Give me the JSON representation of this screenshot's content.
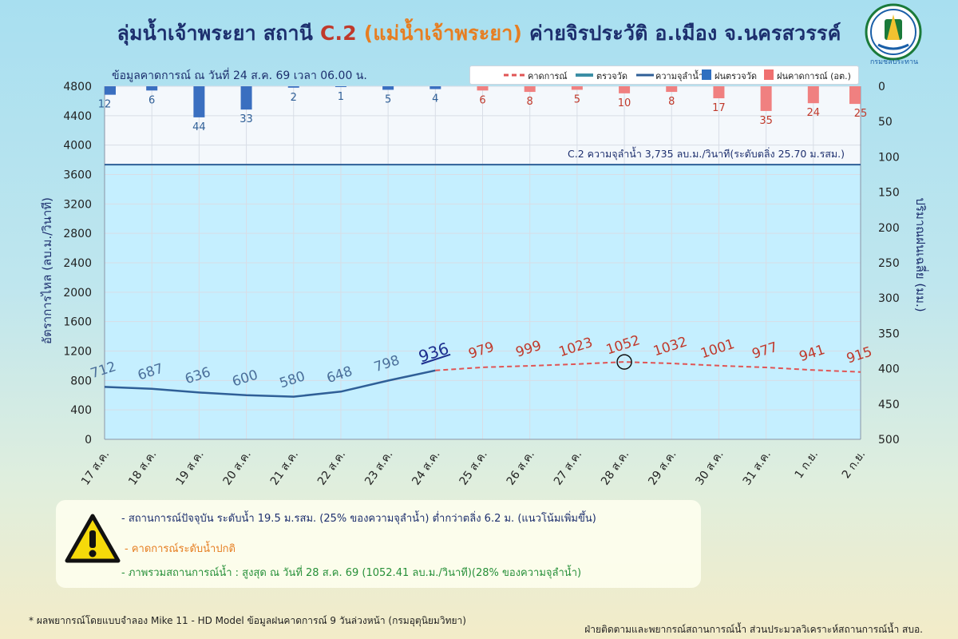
{
  "header": {
    "title_prefix": "ลุ่มน้ำเจ้าพระยา สถานี ",
    "title_station": "C.2",
    "title_river": " (แม่น้ำเจ้าพระยา)",
    "title_suffix": " ค่ายจิรประวัติ อ.เมือง จ.นครสวรรค์",
    "subtitle": "ข้อมูลคาดการณ์ ณ วันที่ 24 ส.ค. 69 เวลา 06.00 น.",
    "logo_text": "กรมชลประทาน"
  },
  "legend": {
    "forecast": "คาดการณ์",
    "observed": "ตรวจวัด",
    "capacity": "ความจุลำน้ำ",
    "rain_observed": "ฝนตรวจวัด",
    "rain_forecast": "ฝนคาดการณ์ (อต.)"
  },
  "colors": {
    "observed": "#2f5f97",
    "forecast": "#e05555",
    "capacity": "#2f5f97",
    "rain_observed": "#3a6fc0",
    "rain_forecast": "#f08080",
    "plot_bg": "#c5efff",
    "rain_panel_bg": "#f7f8fc"
  },
  "chart_data": {
    "type": "line",
    "x": [
      "17 ส.ค.",
      "18 ส.ค.",
      "19 ส.ค.",
      "20 ส.ค.",
      "21 ส.ค.",
      "22 ส.ค.",
      "23 ส.ค.",
      "24 ส.ค.",
      "25 ส.ค.",
      "26 ส.ค.",
      "27 ส.ค.",
      "28 ส.ค.",
      "29 ส.ค.",
      "30 ส.ค.",
      "31 ส.ค.",
      "1 ก.ย.",
      "2 ก.ย."
    ],
    "ylabel": "อัตราการไหล (ลบ.ม./วินาที)",
    "ylim": [
      0,
      4800
    ],
    "yticks": [
      0,
      400,
      800,
      1200,
      1600,
      2000,
      2400,
      2800,
      3200,
      3600,
      4000,
      4400,
      4800
    ],
    "y2label": "ปริมาณฝนเฉลี่ย (มม.)",
    "y2lim": [
      0,
      500
    ],
    "y2ticks": [
      0,
      50,
      100,
      150,
      200,
      250,
      300,
      350,
      400,
      450,
      500
    ],
    "flow_values": [
      712,
      687,
      636,
      600,
      580,
      648,
      798,
      936,
      979,
      999,
      1023,
      1052,
      1032,
      1001,
      977,
      941,
      915
    ],
    "observed_count": 8,
    "rain_values": [
      12,
      6,
      44,
      33,
      2,
      1,
      5,
      4,
      6,
      8,
      5,
      10,
      8,
      17,
      35,
      24,
      25
    ],
    "capacity_value": 3735,
    "capacity_label": "C.2 ความจุลำน้ำ 3,735 ลบ.ม./วินาที(ระดับตลิ่ง 25.70 ม.รสม.)",
    "peak_index": 11,
    "grid": true
  },
  "info": {
    "line1": "- สถานการณ์ปัจจุบัน ระดับน้ำ 19.5 ม.รสม. (25% ของความจุลำน้ำ) ต่ำกว่าตลิ่ง 6.2 ม. (แนวโน้มเพิ่มขึ้น)",
    "line2": "- คาดการณ์ระดับน้ำปกติ",
    "line3": "- ภาพรวมสถานการณ์น้ำ : สูงสุด ณ วันที่ 28 ส.ค. 69 (1052.41 ลบ.ม./วินาที)(28% ของความจุลำน้ำ)"
  },
  "footer": {
    "footnote": "* ผลพยากรณ์โดยแบบจำลอง Mike 11 - HD Model  ข้อมูลฝนคาดการณ์ 9 วันล่วงหน้า (กรมอุตุนิยมวิทยา)",
    "credit": "ฝ่ายติดตามและพยากรณ์สถานการณ์น้ำ ส่วนประมวลวิเคราะห์สถานการณ์น้ำ สบอ."
  }
}
